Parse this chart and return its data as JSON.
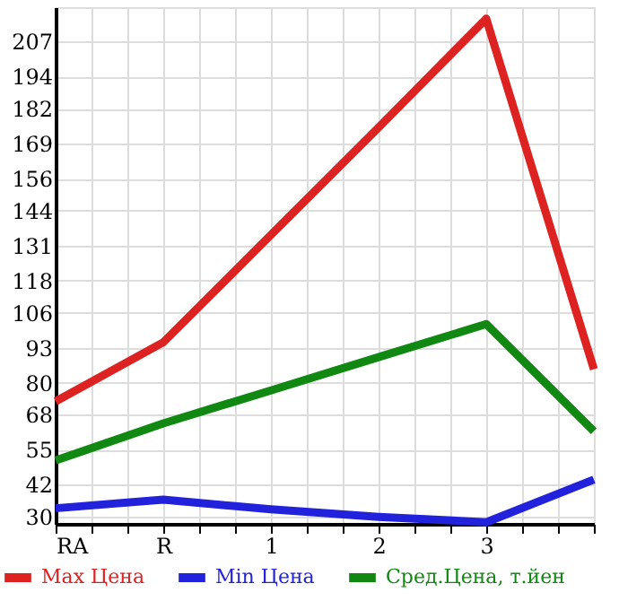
{
  "chart_data": {
    "type": "line",
    "categories": [
      "RA",
      "R",
      "1",
      "2",
      "3",
      null
    ],
    "series": [
      {
        "name": "Max Цена",
        "color": "#dd2222",
        "values": [
          73,
          95,
          135,
          175,
          215.5,
          85
        ]
      },
      {
        "name": "Min Цена",
        "color": "#2222dd",
        "values": [
          33.2,
          36.4,
          32.8,
          30,
          28,
          43.9
        ]
      },
      {
        "name": "Сред.Цена, т.йен",
        "color": "#118811",
        "values": [
          51,
          64.8,
          77.1,
          89.5,
          101.8,
          61.9
        ]
      }
    ],
    "ylim": [
      27.4,
      219.8
    ],
    "yticks": [
      30,
      42,
      55,
      68,
      80,
      93,
      106,
      118,
      131,
      144,
      156,
      169,
      182,
      194,
      207
    ],
    "grid": true,
    "legend": "bottom",
    "marker": "none",
    "line_style": "solid"
  }
}
